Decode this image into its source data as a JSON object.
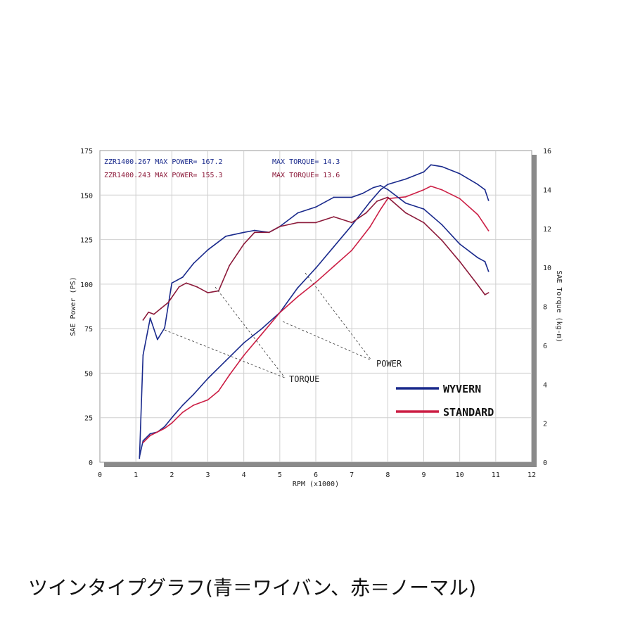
{
  "caption": "ツインタイプグラフ(青＝ワイバン、赤＝ノーマル)",
  "colors": {
    "blue": "#1a2a8c",
    "red": "#cc1f45"
  },
  "chart_data": {
    "type": "line",
    "xlabel": "RPM (x1000)",
    "ylabel": "SAE Power (PS)",
    "y2label": "SAE Torque (kg-m)",
    "xlim": [
      0,
      12
    ],
    "ylim": [
      0,
      175
    ],
    "y2lim": [
      0,
      16
    ],
    "xticks": [
      0,
      1,
      2,
      3,
      4,
      5,
      6,
      7,
      8,
      9,
      10,
      11,
      12
    ],
    "yticks": [
      0,
      25,
      50,
      75,
      100,
      125,
      150,
      175
    ],
    "y2ticks": [
      0,
      2,
      4,
      6,
      8,
      10,
      12,
      14,
      16
    ],
    "grid": true,
    "header": [
      {
        "label": "ZZR1400.267  MAX POWER= 167.2",
        "torque_label": "MAX TORQUE= 14.3",
        "color": "#1a2a8c"
      },
      {
        "label": "ZZR1400.243  MAX POWER= 155.3",
        "torque_label": "MAX TORQUE= 13.6",
        "color": "#8c1a3a"
      }
    ],
    "annotations": [
      {
        "text": "POWER",
        "x": 6.5,
        "y": 55
      },
      {
        "text": "TORQUE",
        "x": 5.3,
        "y": 46
      }
    ],
    "legend_items": [
      {
        "name": "WYVERN",
        "color": "#1a2a8c"
      },
      {
        "name": "STANDARD",
        "color": "#cc1f45"
      }
    ],
    "series": [
      {
        "name": "WYVERN",
        "kind": "power",
        "axis": "left",
        "color": "#1a2a8c",
        "x": [
          1.1,
          1.2,
          1.4,
          1.6,
          1.8,
          2.0,
          2.3,
          2.6,
          3.0,
          3.5,
          4.0,
          4.5,
          5.0,
          5.5,
          6.0,
          6.5,
          7.0,
          7.5,
          7.8,
          8.0,
          8.5,
          9.0,
          9.2,
          9.5,
          10.0,
          10.5,
          10.7,
          10.8
        ],
        "y": [
          3,
          12,
          16,
          17,
          20,
          25,
          32,
          38,
          47,
          57,
          67,
          75,
          84,
          98,
          109,
          121,
          133,
          146,
          153,
          156,
          159,
          163,
          167,
          166,
          162,
          156,
          153,
          147
        ]
      },
      {
        "name": "STANDARD",
        "kind": "power",
        "axis": "left",
        "color": "#cc1f45",
        "x": [
          1.2,
          1.4,
          1.6,
          1.8,
          2.0,
          2.3,
          2.6,
          3.0,
          3.3,
          3.6,
          4.0,
          4.5,
          5.0,
          5.5,
          6.0,
          6.5,
          7.0,
          7.5,
          7.8,
          8.0,
          8.5,
          9.0,
          9.2,
          9.5,
          10.0,
          10.5,
          10.7,
          10.8
        ],
        "y": [
          11,
          15,
          17,
          19,
          22,
          28,
          32,
          35,
          40,
          49,
          60,
          72,
          84,
          93,
          101,
          110,
          119,
          132,
          142,
          148,
          149,
          153,
          155,
          153,
          148,
          139,
          133,
          130
        ]
      },
      {
        "name": "WYVERN",
        "kind": "torque",
        "axis": "right",
        "color": "#1a2a8c",
        "x": [
          1.1,
          1.2,
          1.4,
          1.6,
          1.8,
          2.0,
          2.3,
          2.6,
          3.0,
          3.5,
          4.0,
          4.3,
          4.7,
          5.0,
          5.5,
          6.0,
          6.5,
          7.0,
          7.3,
          7.6,
          7.8,
          8.0,
          8.5,
          9.0,
          9.5,
          10.0,
          10.5,
          10.7,
          10.8
        ],
        "y": [
          0.2,
          5.5,
          7.4,
          6.3,
          6.9,
          9.2,
          9.5,
          10.2,
          10.9,
          11.6,
          11.8,
          11.9,
          11.8,
          12.1,
          12.8,
          13.1,
          13.6,
          13.6,
          13.8,
          14.1,
          14.2,
          14.0,
          13.3,
          13.0,
          12.2,
          11.2,
          10.5,
          10.3,
          9.8
        ]
      },
      {
        "name": "STANDARD",
        "kind": "torque",
        "axis": "right",
        "color": "#8c1a3a",
        "x": [
          1.2,
          1.35,
          1.5,
          1.7,
          1.9,
          2.2,
          2.4,
          2.7,
          3.0,
          3.3,
          3.6,
          4.0,
          4.3,
          4.7,
          5.0,
          5.5,
          6.0,
          6.5,
          7.0,
          7.4,
          7.7,
          8.0,
          8.5,
          9.0,
          9.5,
          10.0,
          10.5,
          10.7,
          10.8
        ],
        "y": [
          7.3,
          7.7,
          7.6,
          7.9,
          8.2,
          9.0,
          9.2,
          9.0,
          8.7,
          8.8,
          10.1,
          11.2,
          11.8,
          11.8,
          12.1,
          12.3,
          12.3,
          12.6,
          12.3,
          12.8,
          13.4,
          13.6,
          12.8,
          12.3,
          11.4,
          10.3,
          9.1,
          8.6,
          8.7
        ]
      }
    ]
  }
}
